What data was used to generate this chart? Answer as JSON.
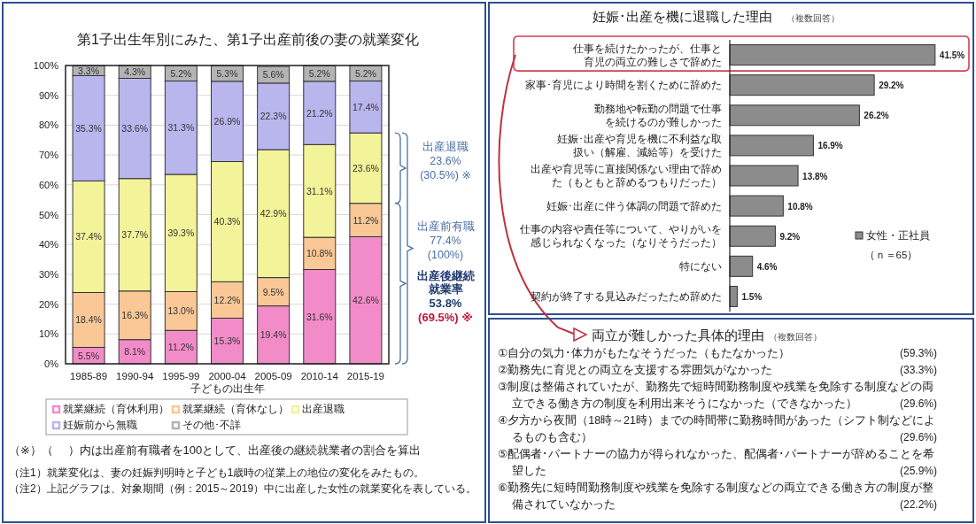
{
  "chart_data": [
    {
      "type": "bar",
      "stacked": true,
      "title": "第1子出生年別にみた、第1子出産前後の妻の就業変化",
      "xlabel": "子どもの出生年",
      "categories": [
        "1985-89",
        "1990-94",
        "1995-99",
        "2000-04",
        "2005-09",
        "2010-14",
        "2015-19"
      ],
      "ylim": [
        0,
        100
      ],
      "yticks": [
        {
          "value": 0,
          "label": "0%"
        },
        {
          "value": 10,
          "label": "10%"
        },
        {
          "value": 20,
          "label": "20%"
        },
        {
          "value": 30,
          "label": "30%"
        },
        {
          "value": 40,
          "label": "40%"
        },
        {
          "value": 50,
          "label": "50%"
        },
        {
          "value": 60,
          "label": "60%"
        },
        {
          "value": 70,
          "label": "70%"
        },
        {
          "value": 80,
          "label": "80%"
        },
        {
          "value": 90,
          "label": "90%"
        },
        {
          "value": 100,
          "label": "100%"
        }
      ],
      "grid": "y",
      "legend": "bottom",
      "series": [
        {
          "name": "就業継続（育休利用）",
          "color": "#f28cc8",
          "values": [
            5.5,
            8.1,
            11.2,
            15.3,
            19.4,
            31.6,
            42.6
          ],
          "value_labels": [
            "5.5%",
            "8.1%",
            "11.2%",
            "15.3%",
            "19.4%",
            "31.6%",
            "42.6%"
          ]
        },
        {
          "name": "就業継続（育休なし）",
          "color": "#f9c896",
          "values": [
            18.4,
            16.3,
            13.0,
            12.2,
            9.5,
            10.8,
            11.2
          ],
          "value_labels": [
            "18.4%",
            "16.3%",
            "13.0%",
            "12.2%",
            "9.5%",
            "10.8%",
            "11.2%"
          ]
        },
        {
          "name": "出産退職",
          "color": "#f3f39a",
          "values": [
            37.4,
            37.7,
            39.3,
            40.3,
            42.9,
            31.1,
            23.6
          ],
          "value_labels": [
            "37.4%",
            "37.7%",
            "39.3%",
            "40.3%",
            "42.9%",
            "31.1%",
            "23.6%"
          ]
        },
        {
          "name": "妊娠前から無職",
          "color": "#b9b6ee",
          "values": [
            35.3,
            33.6,
            31.3,
            26.9,
            22.3,
            21.2,
            17.4
          ],
          "value_labels": [
            "35.3%",
            "33.6%",
            "31.3%",
            "26.9%",
            "22.3%",
            "21.2%",
            "17.4%"
          ]
        },
        {
          "name": "その他･不詳",
          "color": "#b4b4b4",
          "values": [
            3.3,
            4.3,
            5.2,
            5.3,
            5.6,
            5.2,
            5.2
          ],
          "value_labels": [
            "3.3%",
            "4.3%",
            "5.2%",
            "5.3%",
            "5.6%",
            "5.2%",
            "5.2%"
          ]
        }
      ],
      "annotations": [
        "出産退職",
        "23.6%",
        "(30.5%) ※",
        "出産前有職",
        "77.4%",
        "(100%)",
        "出産後継続就業率",
        "53.8%",
        "(69.5%) ※",
        "（※）（　 ）内は出産前有職者を100として、出産後の継続就業者の割合を算出",
        "（注1）就業変化は、妻の妊娠判明時と子ども1歳時の従業上の地位の変化をみたもの。",
        "（注2）上記グラフは、対象期間（例：2015～2019）中に出産した女性の就業変化を表している。"
      ]
    },
    {
      "type": "bar",
      "orientation": "horizontal",
      "title": "妊娠･出産を機に退職した理由",
      "subtitle": "（複数回答）",
      "categories": [
        "仕事を続けたかったが、仕事と育児の両立の難しさで辞めた",
        "家事･育児により時間を割くために辞めた",
        "勤務地や転勤の問題で仕事を続けるのが難しかった",
        "妊娠･出産や育児を機に不利益な取扱い（解雇、減給等）を受けた",
        "出産や育児等に直接関係ない理由で辞めた（もともと辞めるつもりだった）",
        "妊娠･出産に伴う体調の問題で辞めた",
        "仕事の内容や責任等について、やりがいを感じられなくなった（なりそうだった）",
        "特にない",
        "契約が終了する見込みだったため辞めた"
      ],
      "tick_labels": "y",
      "legend": "right",
      "series": [
        {
          "name": "女性・正社員",
          "color": "#8c8c8c",
          "values": [
            41.5,
            29.2,
            26.2,
            16.9,
            13.8,
            10.8,
            9.2,
            4.6,
            1.5
          ],
          "value_labels": [
            "41.5%",
            "29.2%",
            "26.2%",
            "16.9%",
            "13.8%",
            "10.8%",
            "9.2%",
            "4.6%",
            "1.5%"
          ]
        }
      ],
      "annotations": [
        "（ｎ＝65）"
      ]
    },
    {
      "type": "other",
      "title": "両立が難しかった具体的理由",
      "subtitle": "（複数回答）",
      "annotations": [
        "①自分の気力･体力がもたなそうだった（もたなかった）",
        "(59.3%)",
        "②勤務先に育児との両立を支援する雰囲気がなかった",
        "(33.3%)",
        "③制度は整備されていたが、勤務先で短時間勤務制度や残業を免除する制度などの両立できる働き方の制度を利用出来そうになかった（できなかった）",
        "(29.6%)",
        "④夕方から夜間（18時～21時）までの時間帯に勤務時間があった（シフト制などによるものも含む）",
        "(29.6%)",
        "⑤配偶者･パートナーの協力が得られなかった、配偶者･パートナーが辞めることを希望した",
        "(25.9%)",
        "⑥勤務先に短時間勤務制度や残業を免除する制度などの両立できる働き方の制度が整備されていなかった",
        "(22.2%)"
      ]
    }
  ]
}
